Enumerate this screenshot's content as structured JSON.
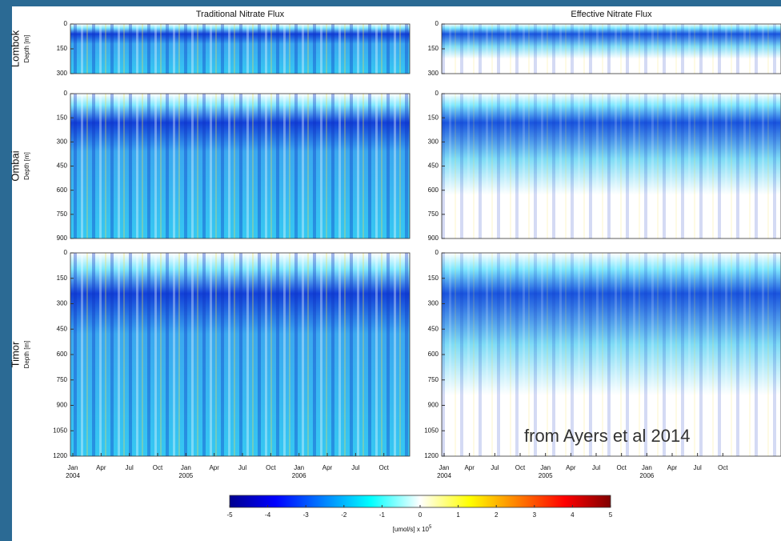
{
  "figure": {
    "panels": [
      {
        "title": "Traditional Nitrate Flux"
      },
      {
        "title": "Effective Nitrate Flux"
      }
    ],
    "rows": [
      {
        "name": "Lombok",
        "ylabel": "Depth [m]",
        "ylim": [
          0,
          300
        ],
        "yticks": [
          0,
          150,
          300
        ]
      },
      {
        "name": "Ombai",
        "ylabel": "Depth [m]",
        "ylim": [
          0,
          900
        ],
        "yticks": [
          0,
          150,
          300,
          450,
          600,
          750,
          900
        ]
      },
      {
        "name": "Timor",
        "ylabel": "Depth [m]",
        "ylim": [
          0,
          1200
        ],
        "yticks": [
          0,
          150,
          300,
          450,
          600,
          750,
          900,
          1050,
          1200
        ]
      }
    ],
    "xticks": [
      {
        "month": "Jan",
        "year": "2004"
      },
      {
        "month": "Apr"
      },
      {
        "month": "Jul"
      },
      {
        "month": "Oct"
      },
      {
        "month": "Jan",
        "year": "2005"
      },
      {
        "month": "Apr"
      },
      {
        "month": "Jul"
      },
      {
        "month": "Oct"
      },
      {
        "month": "Jan",
        "year": "2006"
      },
      {
        "month": "Apr"
      },
      {
        "month": "Jul"
      },
      {
        "month": "Oct"
      }
    ],
    "colorbar": {
      "lim": [
        -5,
        5
      ],
      "ticks": [
        -5,
        -4,
        -3,
        -2,
        -1,
        0,
        1,
        2,
        3,
        4,
        5
      ],
      "label": "[umol/s] x 10",
      "exponent": "5"
    },
    "annotation": "from Ayers et al 2014"
  }
}
